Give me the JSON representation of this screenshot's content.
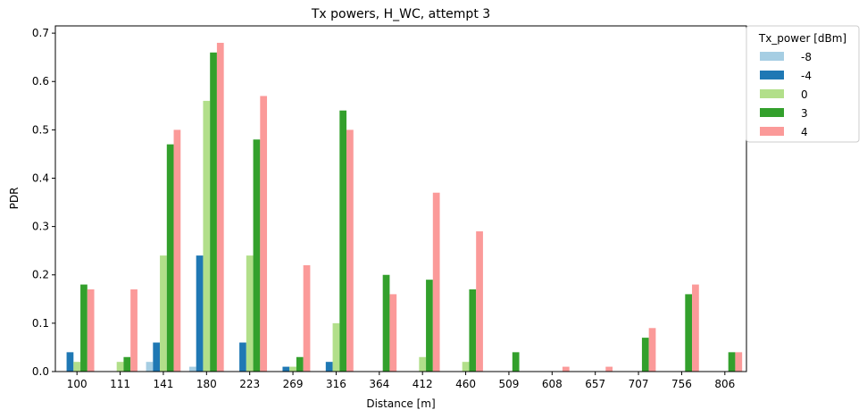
{
  "chart_data": {
    "type": "bar",
    "title": "Tx powers, H_WC, attempt 3",
    "xlabel": "Distance [m]",
    "ylabel": "PDR",
    "ylim": [
      0,
      0.715
    ],
    "yticks": [
      "0.0",
      "0.1",
      "0.2",
      "0.3",
      "0.4",
      "0.5",
      "0.6",
      "0.7"
    ],
    "grid": false,
    "legend": {
      "title": "Tx_power [dBm]",
      "placement": "top-right, outside"
    },
    "categories": [
      "100",
      "111",
      "141",
      "180",
      "223",
      "269",
      "316",
      "364",
      "412",
      "460",
      "509",
      "608",
      "657",
      "707",
      "756",
      "806"
    ],
    "series": [
      {
        "name": "-8",
        "color": "#a6cee3",
        "values": [
          0,
          0,
          0.02,
          0.01,
          0,
          0,
          0,
          0,
          0,
          0,
          0,
          0,
          0,
          0,
          0,
          0
        ]
      },
      {
        "name": "-4",
        "color": "#1f78b4",
        "values": [
          0.04,
          0,
          0.06,
          0.24,
          0.06,
          0.01,
          0.02,
          0,
          0,
          0,
          0,
          0,
          0,
          0,
          0,
          0
        ]
      },
      {
        "name": "0",
        "color": "#b2df8a",
        "values": [
          0.02,
          0.02,
          0.24,
          0.56,
          0.24,
          0.01,
          0.1,
          0,
          0.03,
          0.02,
          0,
          0,
          0,
          0,
          0,
          0
        ]
      },
      {
        "name": "3",
        "color": "#33a02c",
        "values": [
          0.18,
          0.03,
          0.47,
          0.66,
          0.48,
          0.03,
          0.54,
          0.2,
          0.19,
          0.17,
          0.04,
          0,
          0,
          0.07,
          0.16,
          0.04
        ]
      },
      {
        "name": "4",
        "color": "#fb9a99",
        "values": [
          0.17,
          0.17,
          0.5,
          0.68,
          0.57,
          0.22,
          0.5,
          0.16,
          0.37,
          0.29,
          0,
          0.01,
          0.01,
          0.09,
          0.18,
          0.04
        ]
      }
    ]
  }
}
